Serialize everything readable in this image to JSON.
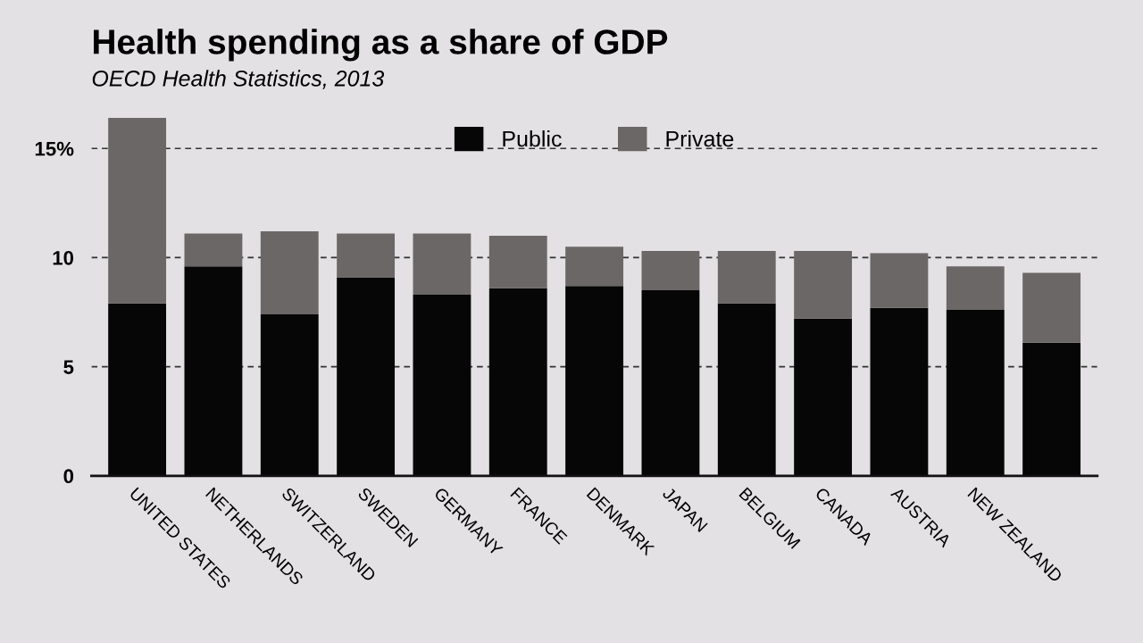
{
  "chart_data": {
    "type": "bar",
    "title": "Health spending as a share of GDP",
    "subtitle": "OECD Health Statistics, 2013",
    "categories": [
      "UNITED STATES",
      "NETHERLANDS",
      "SWITZERLAND",
      "SWEDEN",
      "GERMANY",
      "FRANCE",
      "DENMARK",
      "JAPAN",
      "BELGIUM",
      "CANADA",
      "AUSTRIA",
      "NEW ZEALAND",
      null
    ],
    "series": [
      {
        "name": "Public",
        "color": "#060606",
        "values": [
          7.9,
          9.6,
          7.4,
          9.1,
          8.3,
          8.6,
          8.7,
          8.5,
          7.9,
          7.2,
          7.7,
          7.6,
          6.1
        ]
      },
      {
        "name": "Private",
        "color": "#6b6767",
        "values": [
          8.5,
          1.5,
          3.8,
          2.0,
          2.8,
          2.4,
          1.8,
          1.8,
          2.4,
          3.1,
          2.5,
          2.0,
          3.2
        ]
      }
    ],
    "stacked": true,
    "ylim": [
      0,
      16.5
    ],
    "yticks": [
      0,
      5,
      10,
      {
        "value": 15,
        "label": "15%"
      }
    ],
    "grid": "y",
    "legend": "top"
  }
}
